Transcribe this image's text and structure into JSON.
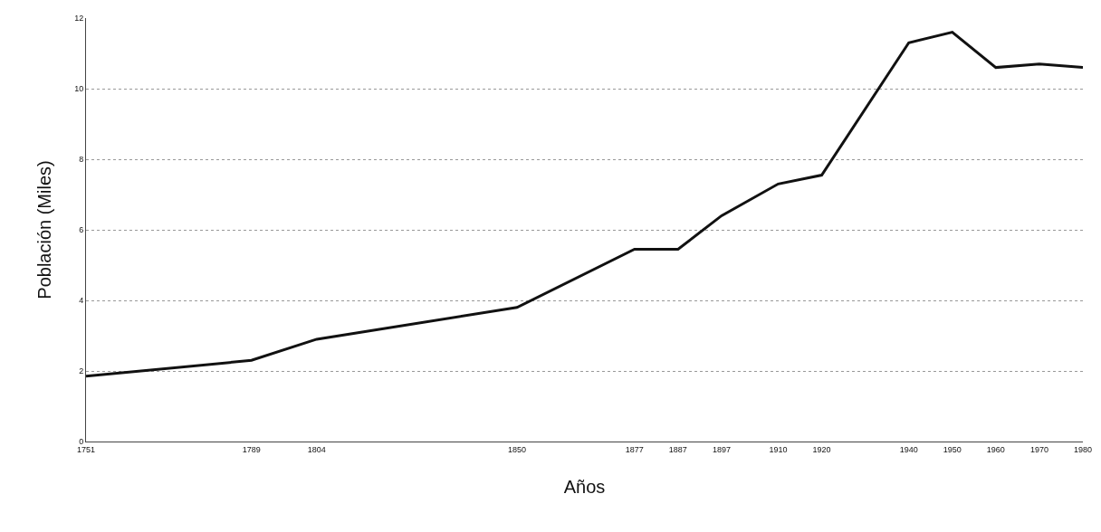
{
  "chart_data": {
    "type": "line",
    "xlabel": "Años",
    "ylabel": "Población (Miles)",
    "x": [
      1751,
      1789,
      1804,
      1850,
      1877,
      1887,
      1897,
      1910,
      1920,
      1940,
      1950,
      1960,
      1970,
      1980
    ],
    "series": [
      {
        "color": "#111111",
        "values": [
          1.85,
          2.3,
          2.9,
          3.8,
          5.45,
          5.45,
          6.4,
          7.3,
          7.55,
          11.3,
          11.6,
          10.6,
          10.7,
          10.6
        ]
      }
    ],
    "xlim": [
      1751,
      1980
    ],
    "xticks": [
      1751,
      1789,
      1804,
      1850,
      1877,
      1887,
      1897,
      1910,
      1920,
      1940,
      1950,
      1960,
      1970,
      1980
    ],
    "ylim": [
      0,
      12
    ],
    "yticks": [
      0,
      2,
      4,
      6,
      8,
      10,
      12
    ],
    "grid": "y",
    "marker": "none",
    "line_style": "solid"
  }
}
